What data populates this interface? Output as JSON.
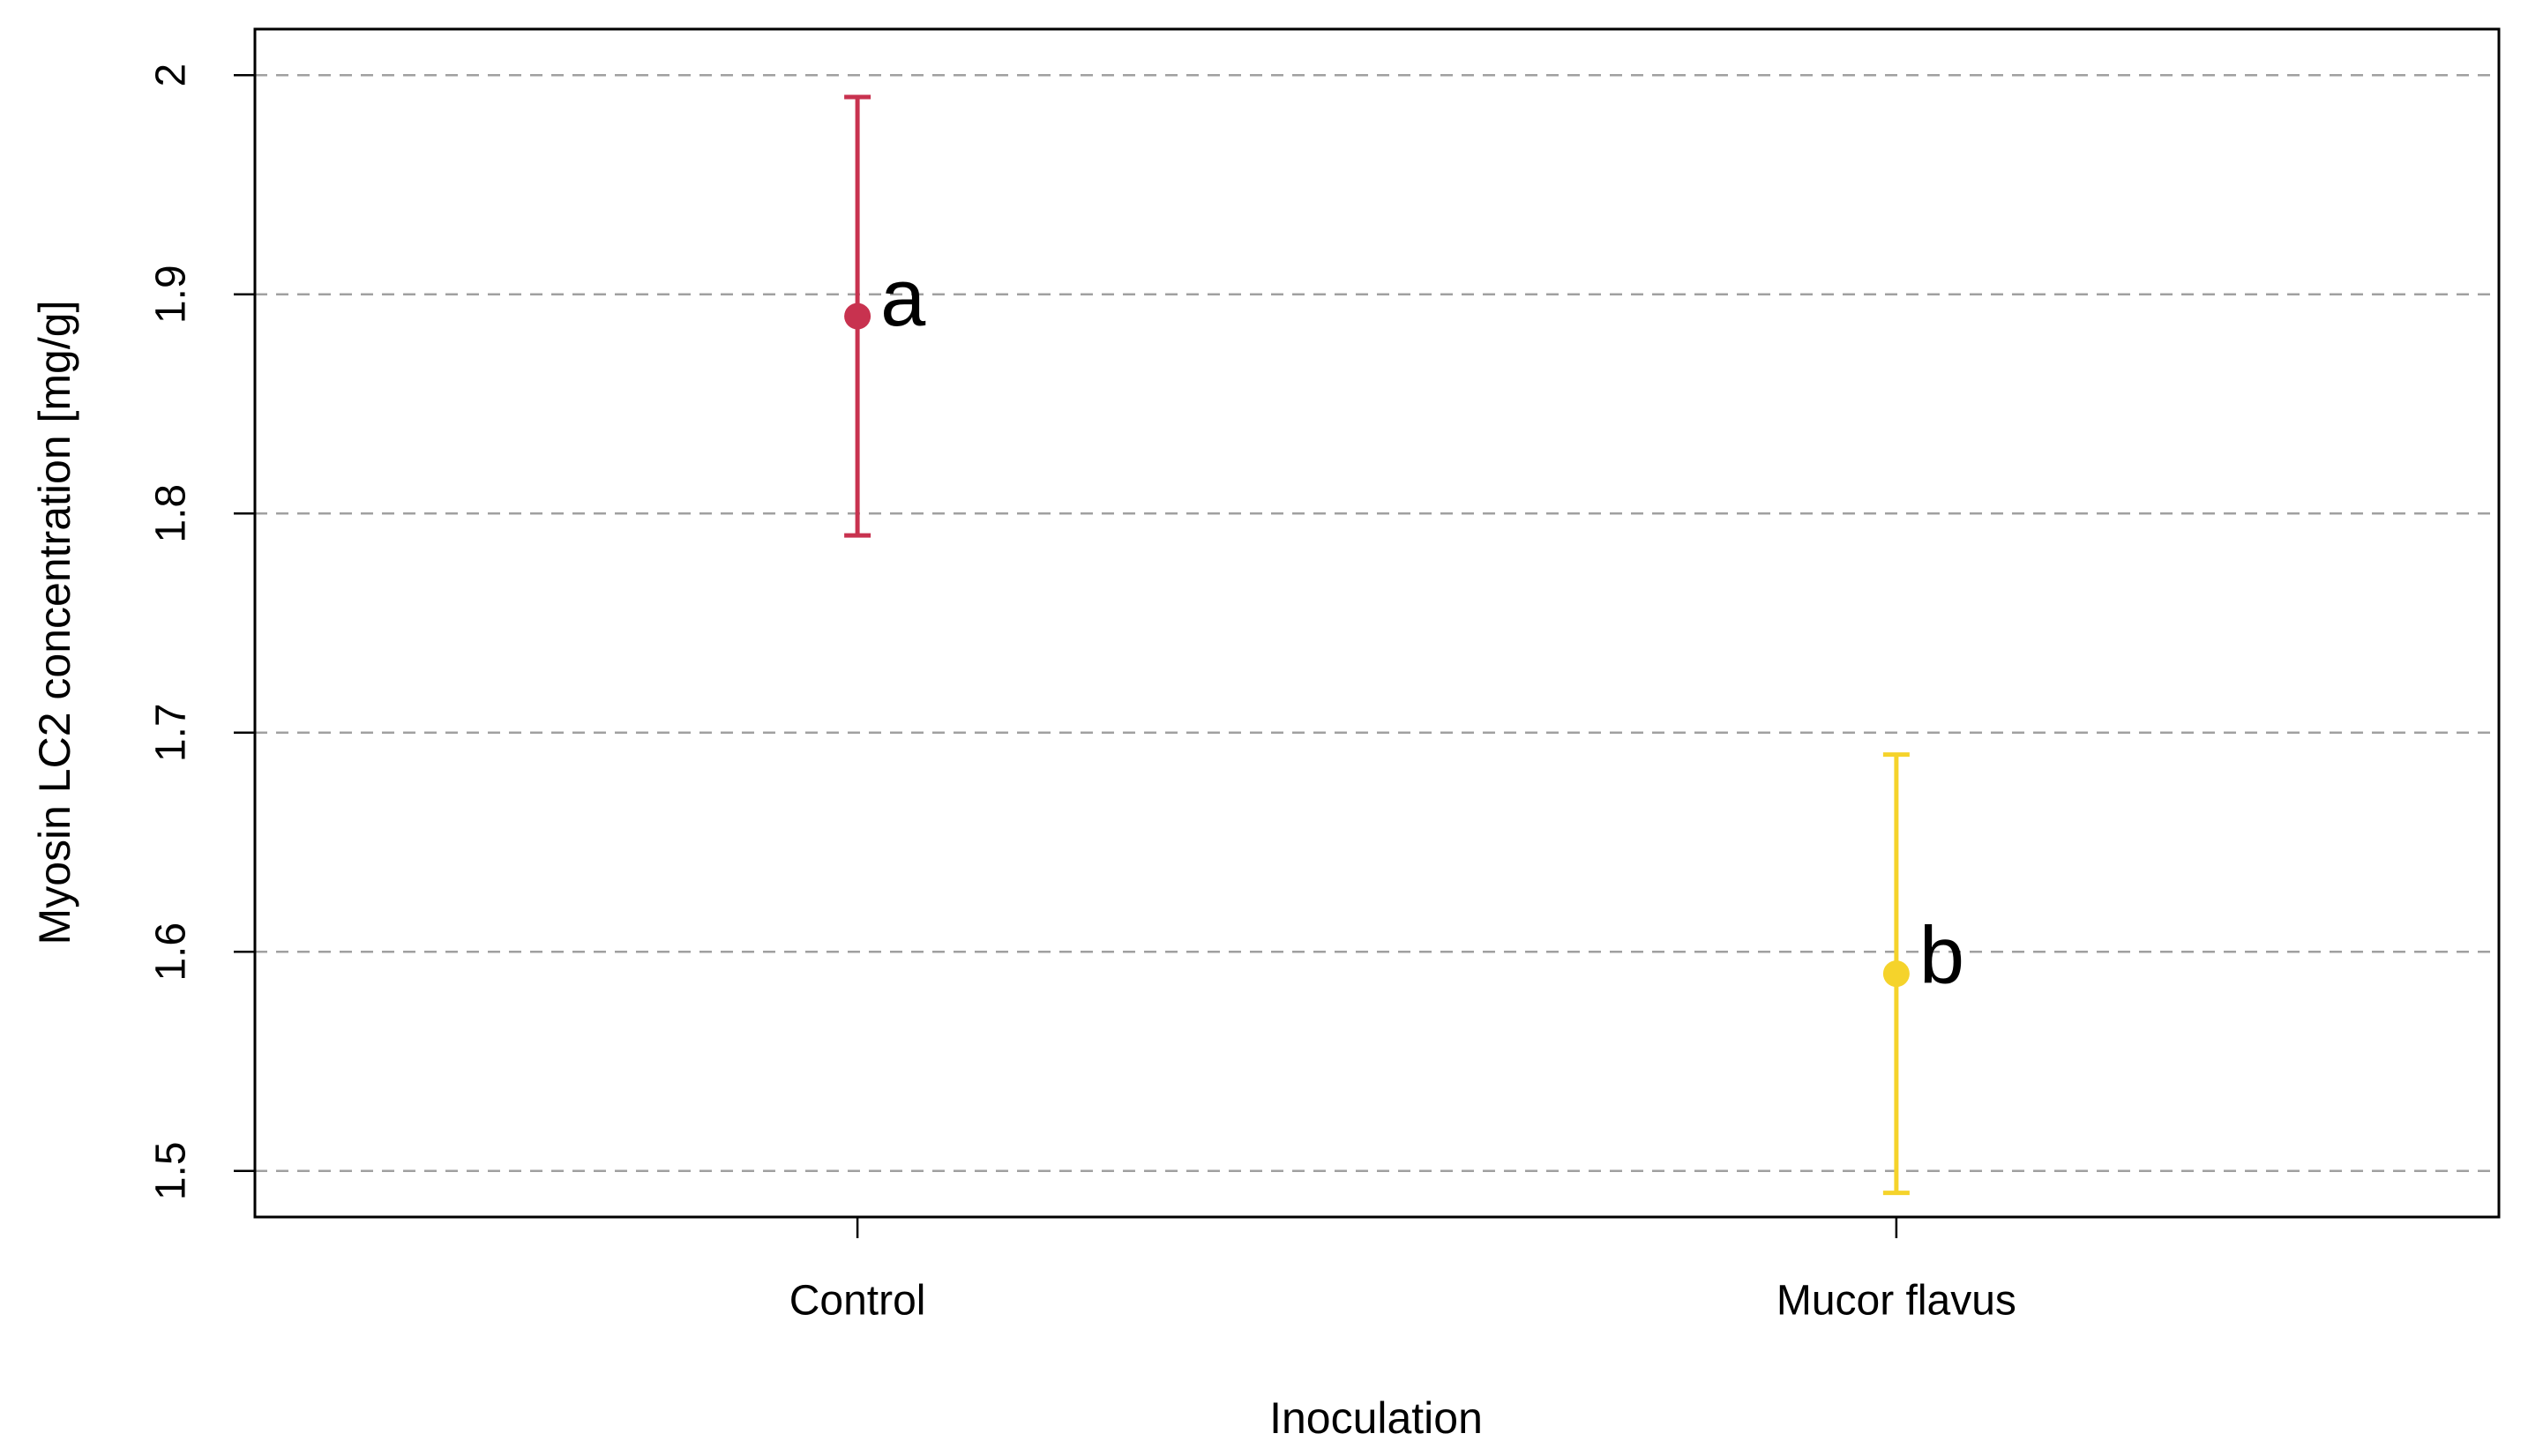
{
  "chart_data": {
    "type": "errorbar",
    "x_label": "Inoculation",
    "y_label": "Myosin LC2 concentration [mg/g]",
    "categories": [
      "Control",
      "Mucor flavus"
    ],
    "values": [
      1.89,
      1.59
    ],
    "errors": [
      0.1,
      0.1
    ],
    "letters": [
      "a",
      "b"
    ],
    "colors": [
      "#c8324f",
      "#f5d32b"
    ],
    "ylim": [
      1.479,
      2.021
    ],
    "yticks": [
      1.5,
      1.6,
      1.7,
      1.8,
      1.9,
      2
    ],
    "grid": true
  }
}
